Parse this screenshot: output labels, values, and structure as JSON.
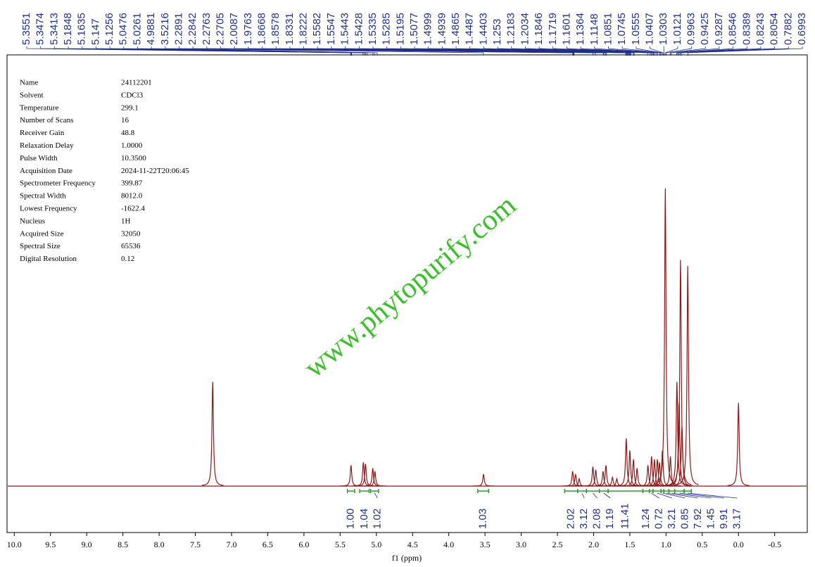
{
  "chart_data": {
    "type": "nmr",
    "x_label": "f1 (ppm)",
    "xlim": [
      10.1,
      -0.95
    ],
    "color": "#8b1a1a",
    "integral_color": "#2e9b2e",
    "label_color": "#1f2f8a",
    "xticks": [
      {
        "value": 10,
        "label": "10.0"
      },
      9.5,
      {
        "value": 9,
        "label": "9.0"
      },
      8.5,
      {
        "value": 8,
        "label": "8.0"
      },
      7.5,
      {
        "value": 7,
        "label": "7.0"
      },
      6.5,
      {
        "value": 6,
        "label": "6.0"
      },
      5.5,
      {
        "value": 5,
        "label": "5.0"
      },
      4.5,
      {
        "value": 4,
        "label": "4.0"
      },
      3.5,
      {
        "value": 3,
        "label": "3.0"
      },
      2.5,
      {
        "value": 2,
        "label": "2.0"
      },
      1.5,
      {
        "value": 1,
        "label": "1.0"
      },
      0.5,
      {
        "value": 0,
        "label": "0.0"
      },
      -0.5
    ],
    "peaks": {
      "x": [
        7.26,
        5.35,
        5.18,
        5.15,
        5.05,
        5.02,
        3.52,
        2.29,
        2.25,
        2.2,
        2.01,
        1.97,
        1.87,
        1.83,
        1.74,
        1.68,
        1.55,
        1.5,
        1.45,
        1.4,
        1.25,
        1.2,
        1.16,
        1.12,
        1.09,
        1.05,
        1.01,
        0.94,
        0.85,
        0.82,
        0.8,
        0.78,
        0.7,
        0.0
      ],
      "values": [
        35,
        7,
        8,
        7.5,
        6,
        5,
        4,
        5,
        4,
        2.5,
        6.5,
        5.5,
        5,
        7,
        3,
        2.5,
        16,
        12,
        9,
        6,
        7,
        10,
        9,
        9,
        8,
        12,
        100,
        10,
        35,
        28,
        76,
        20,
        74,
        28
      ]
    },
    "peak_labels": [
      5.3551,
      5.3474,
      5.3413,
      5.1848,
      5.1635,
      5.147,
      5.1256,
      5.0476,
      5.0261,
      4.9881,
      3.5216,
      2.2891,
      2.2842,
      2.2763,
      2.2705,
      2.0087,
      1.9763,
      1.8668,
      1.8578,
      1.8331,
      1.8222,
      1.5582,
      1.5547,
      1.5443,
      1.5428,
      1.5335,
      1.5285,
      1.5195,
      1.5077,
      1.4999,
      1.4939,
      1.4865,
      1.4487,
      1.4403,
      1.253,
      1.2183,
      1.2034,
      1.1846,
      1.1719,
      1.1601,
      1.1364,
      1.1148,
      1.0851,
      1.0745,
      1.0555,
      1.0407,
      1.0303,
      1.0121,
      0.9963,
      0.9425,
      0.9287,
      0.8546,
      0.8389,
      0.8243,
      0.8054,
      0.7882,
      0.6993
    ],
    "integrals": {
      "ranges": [
        [
          5.4,
          5.3
        ],
        [
          5.23,
          5.1
        ],
        [
          5.08,
          4.97
        ],
        [
          3.6,
          3.45
        ],
        [
          2.4,
          2.22
        ],
        [
          2.22,
          2.1
        ],
        [
          2.1,
          1.92
        ],
        [
          1.92,
          1.8
        ],
        [
          1.8,
          1.32
        ],
        [
          1.32,
          1.23
        ],
        [
          1.23,
          1.18
        ],
        [
          1.18,
          1.07
        ],
        [
          1.07,
          1.03
        ],
        [
          1.03,
          0.96
        ],
        [
          0.96,
          0.88
        ],
        [
          0.88,
          0.75
        ],
        [
          0.75,
          0.65
        ]
      ],
      "values": [
        1,
        1.04,
        1.02,
        1.03,
        2.02,
        3.12,
        2.08,
        1.19,
        11.41,
        1.24,
        0.72,
        3.21,
        0.85,
        7.92,
        1.45,
        9.91,
        3.17
      ],
      "value_labels": [
        "1.00",
        "1.04",
        "1.02",
        "1.03",
        "2.02",
        "3.12",
        "2.08",
        "1.19",
        "11.41",
        "1.24",
        "0.72",
        "3.21",
        "0.85",
        "7.92",
        "1.45",
        "9.91",
        "3.17"
      ]
    }
  },
  "parameters": [
    {
      "label": "Name",
      "value": "24112201"
    },
    {
      "label": "Solvent",
      "value": "CDCl3"
    },
    {
      "label": "Temperature",
      "value": "299.1"
    },
    {
      "label": "Number of Scans",
      "value": "16"
    },
    {
      "label": "Receiver Gain",
      "value": "48.8"
    },
    {
      "label": "Relaxation Delay",
      "value": "1.0000"
    },
    {
      "label": "Pulse Width",
      "value": "10.3500"
    },
    {
      "label": "Acquisition Date",
      "value": "2024-11-22T20:06:45"
    },
    {
      "label": "Spectrometer Frequency",
      "value": "399.87"
    },
    {
      "label": "Spectral Width",
      "value": "8012.0"
    },
    {
      "label": "Lowest Frequency",
      "value": "-1622.4"
    },
    {
      "label": "Nucleus",
      "value": "1H"
    },
    {
      "label": "Acquired Size",
      "value": "32050"
    },
    {
      "label": "Spectral Size",
      "value": "65536"
    },
    {
      "label": "Digital Resolution",
      "value": "0.12"
    }
  ],
  "watermark": "www.phytopurify.com"
}
